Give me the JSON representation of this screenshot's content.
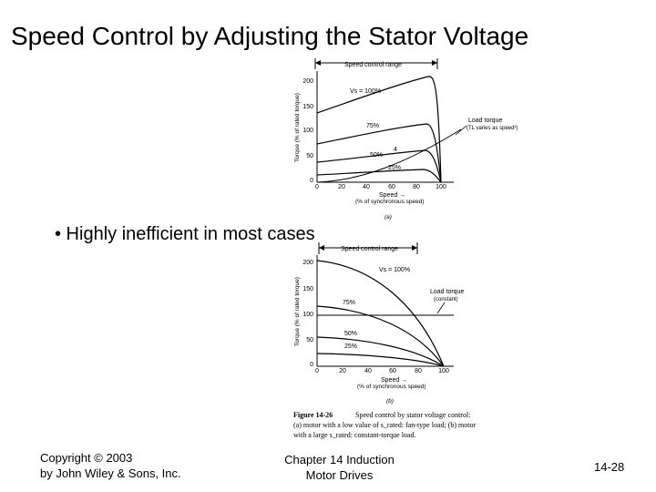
{
  "slide": {
    "title": "Speed Control by Adjusting the Stator Voltage",
    "bullet": "• Highly inefficient in most cases"
  },
  "figure_a": {
    "range_label": "Speed control range",
    "ylabel": "Torque (% of rated torque)",
    "xlabel_1": "Speed →",
    "xlabel_2": "(% of synchronous speed)",
    "y_ticks": [
      "200",
      "150",
      "100",
      "50",
      "0"
    ],
    "x_ticks": [
      "0",
      "20",
      "40",
      "60",
      "80",
      "100"
    ],
    "curve_labels": [
      "Vs = 100%",
      "75%",
      "50%",
      "25%"
    ],
    "point_label": "4",
    "load_label_1": "Load torque",
    "load_label_2": "(TL varies as speed²)",
    "panel": "(a)"
  },
  "figure_b": {
    "range_label": "Speed control range",
    "ylabel": "Torque (% of rated torque)",
    "xlabel_1": "Speed →",
    "xlabel_2": "(% of synchronous speed)",
    "y_ticks": [
      "200",
      "150",
      "100",
      "50",
      "0"
    ],
    "x_ticks": [
      "0",
      "20",
      "40",
      "60",
      "80",
      "100"
    ],
    "curve_labels": [
      "Vs = 100%",
      "75%",
      "50%",
      "25%"
    ],
    "load_label_1": "Load torque",
    "load_label_2": "(constant)",
    "panel": "(b)"
  },
  "caption": {
    "lead": "Figure 14-26",
    "line1": "Speed control by stator voltage control:",
    "line2": "(a) motor with a low value of s_rated: fan-type load; (b) motor",
    "line3": "with a large s_rated: constant-torque load."
  },
  "footer": {
    "copyright_1": "Copyright © 2003",
    "copyright_2": "by John Wiley & Sons, Inc.",
    "chapter_1": "Chapter 14 Induction",
    "chapter_2": "Motor Drives",
    "slide_number": "14-28"
  }
}
